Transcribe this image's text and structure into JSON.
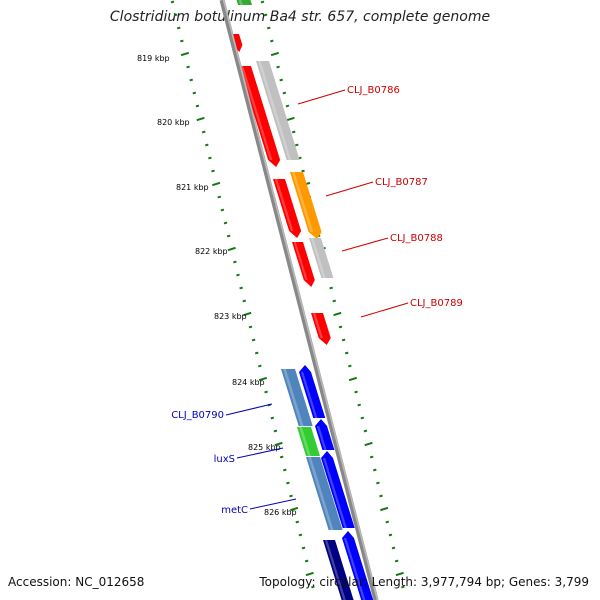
{
  "header": {
    "title": "Clostridium botulinum Ba4 str. 657, complete genome"
  },
  "footer": {
    "accession": "Accession: NC_012658",
    "summary": "Topology: circular; Length: 3,977,794 bp; Genes: 3,799"
  },
  "ticks": [
    {
      "label": "819 kbp"
    },
    {
      "label": "820 kbp"
    },
    {
      "label": "821 kbp"
    },
    {
      "label": "822 kbp"
    },
    {
      "label": "823 kbp"
    },
    {
      "label": "824 kbp"
    },
    {
      "label": "825 kbp"
    },
    {
      "label": "826 kbp"
    }
  ],
  "gene_labels": [
    {
      "text": "CLJ_B0786",
      "color": "#cc0000"
    },
    {
      "text": "CLJ_B0787",
      "color": "#cc0000"
    },
    {
      "text": "CLJ_B0788",
      "color": "#cc0000"
    },
    {
      "text": "CLJ_B0789",
      "color": "#cc0000"
    },
    {
      "text": "CLJ_B0790",
      "color": "#0000bb"
    },
    {
      "text": "luxS",
      "color": "#0000bb"
    },
    {
      "text": "metC",
      "color": "#0000bb"
    }
  ],
  "colors": {
    "red": "#ff0000",
    "grey": "#c0c0c0",
    "orange": "#ff9900",
    "blue": "#0000ff",
    "steelblue": "#4f84bd",
    "green": "#33cc33",
    "navy": "#000080",
    "tick_green": "#117711",
    "backbone": "#888888"
  }
}
